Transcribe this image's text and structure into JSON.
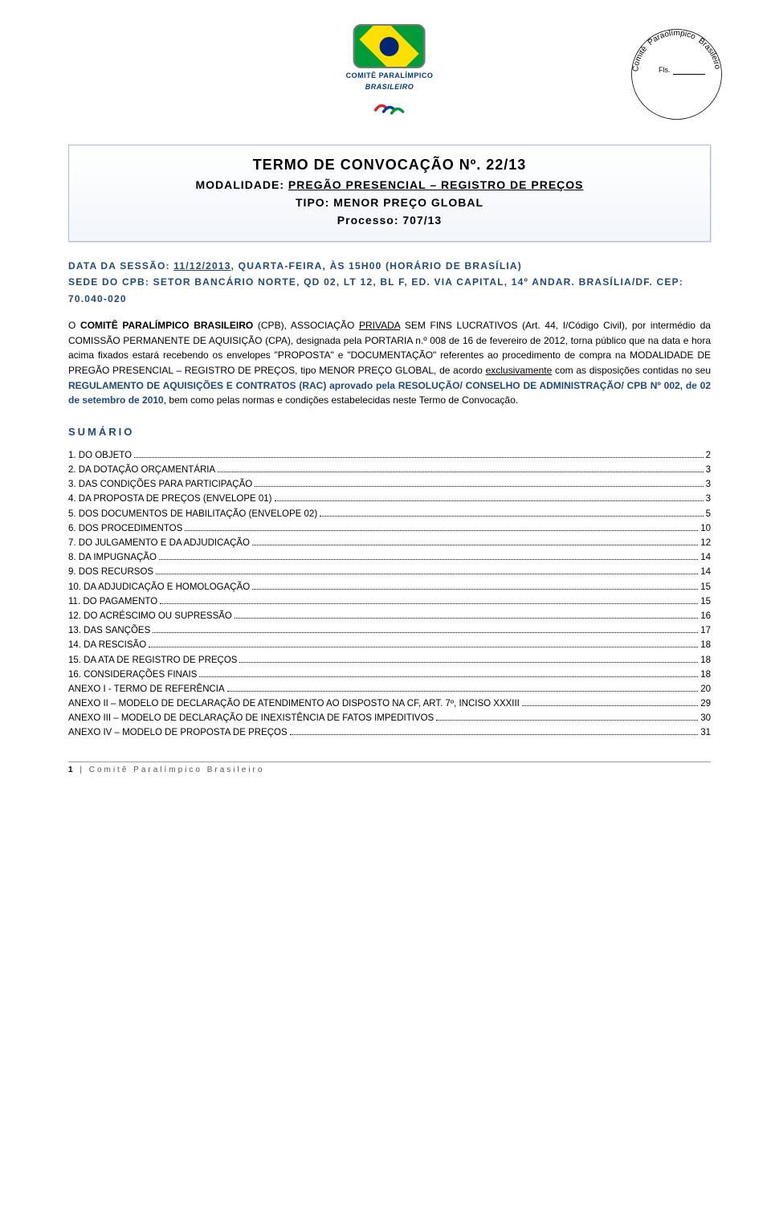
{
  "header": {
    "logo_line1": "COMITÊ PARALÍMPICO",
    "logo_line2": "BRASILEIRO",
    "stamp_text_top": "Comitê Paraolímpico Brasileiro",
    "stamp_fls": "Fls."
  },
  "title_box": {
    "line1": "TERMO DE CONVOCAÇÃO Nº. 22/13",
    "line2_prefix": "MODALIDADE: ",
    "line2_underline": "PREGÃO PRESENCIAL – REGISTRO DE PREÇOS",
    "line3": "TIPO: MENOR PREÇO GLOBAL",
    "line4": "Processo: 707/13"
  },
  "session": {
    "l1_a": "DATA DA SESSÃO: ",
    "l1_date": "11/12/2013",
    "l1_b": ", QUARTA-FEIRA, ÀS 15H00 (HORÁRIO DE BRASÍLIA)",
    "l2": "SEDE DO CPB: SETOR BANCÁRIO NORTE, QD 02, LT 12, BL F, ED. VIA CAPITAL, 14º ANDAR. BRASÍLIA/DF. CEP: 70.040-020"
  },
  "body": {
    "p1_a": "O ",
    "p1_b": "COMITÊ PARALÍMPICO BRASILEIRO",
    "p1_c": " (CPB), ASSOCIAÇÃO ",
    "p1_d": "PRIVADA",
    "p1_e": " SEM FINS LUCRATIVOS (Art. 44, I/Código Civil), por intermédio da COMISSÃO PERMANENTE DE AQUISIÇÃO (CPA), designada pela PORTARIA n.º 008 de 16 de fevereiro de 2012, torna público que na data e hora acima fixados estará recebendo os envelopes \"PROPOSTA\" e \"DOCUMENTAÇÃO\" referentes ao procedimento de compra na MODALIDADE DE PREGÃO PRESENCIAL – REGISTRO DE PREÇOS, tipo MENOR PREÇO GLOBAL, de acordo ",
    "p1_f": "exclusivamente",
    "p1_g": " com as disposições contidas no seu ",
    "p1_h": "REGULAMENTO DE AQUISIÇÕES E CONTRATOS (RAC) aprovado pela RESOLUÇÃO/ CONSELHO DE ADMINISTRAÇÃO/ CPB Nº 002, de 02 de setembro de 2010",
    "p1_i": ", bem como pelas normas e condições estabelecidas neste Termo de Convocação."
  },
  "sumario_label": "SUMÁRIO",
  "toc": [
    {
      "label": "1. DO OBJETO",
      "page": "2"
    },
    {
      "label": "2. DA DOTAÇÃO ORÇAMENTÁRIA",
      "page": "3"
    },
    {
      "label": "3. DAS CONDIÇÕES PARA PARTICIPAÇÃO",
      "page": "3"
    },
    {
      "label": "4. DA PROPOSTA DE PREÇOS (ENVELOPE 01)",
      "page": "3"
    },
    {
      "label": "5. DOS DOCUMENTOS DE HABILITAÇÃO (ENVELOPE 02)",
      "page": "5"
    },
    {
      "label": "6. DOS PROCEDIMENTOS",
      "page": "10"
    },
    {
      "label": "7. DO JULGAMENTO E DA ADJUDICAÇÃO",
      "page": "12"
    },
    {
      "label": "8. DA IMPUGNAÇÃO",
      "page": "14"
    },
    {
      "label": "9. DOS RECURSOS",
      "page": "14"
    },
    {
      "label": "10. DA ADJUDICAÇÃO E HOMOLOGAÇÃO",
      "page": "15"
    },
    {
      "label": "11. DO PAGAMENTO",
      "page": "15"
    },
    {
      "label": "12. DO ACRÉSCIMO OU SUPRESSÃO",
      "page": "16"
    },
    {
      "label": "13. DAS SANÇÕES",
      "page": "17"
    },
    {
      "label": "14. DA RESCISÃO",
      "page": "18"
    },
    {
      "label": "15. DA ATA DE REGISTRO DE PREÇOS",
      "page": "18"
    },
    {
      "label": "16. CONSIDERAÇÕES FINAIS",
      "page": "18"
    },
    {
      "label": "ANEXO I - TERMO DE REFERÊNCIA",
      "page": "20"
    },
    {
      "label": "ANEXO II – MODELO DE DECLARAÇÃO DE ATENDIMENTO AO DISPOSTO NA CF, ART. 7º, INCISO XXXIII",
      "page": "29"
    },
    {
      "label": "ANEXO III – MODELO DE DECLARAÇÃO DE INEXISTÊNCIA DE FATOS IMPEDITIVOS",
      "page": "30"
    },
    {
      "label": "ANEXO IV – MODELO DE PROPOSTA DE PREÇOS",
      "page": "31"
    }
  ],
  "footer": {
    "page_num": "1",
    "sep": " | ",
    "text": "Comitê Paralímpico Brasileiro"
  },
  "colors": {
    "accent_blue": "#1f497d",
    "border_blue": "#a7bfde",
    "text": "#000000",
    "footer_gray": "#555555"
  }
}
